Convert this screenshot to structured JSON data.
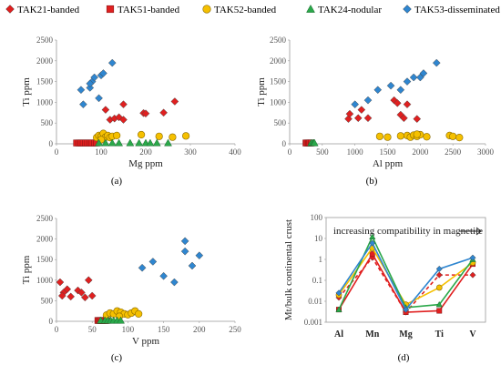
{
  "legend": [
    {
      "label": "TAK21-banded",
      "color": "#e02020",
      "marker": "diamond"
    },
    {
      "label": "TAK51-banded",
      "color": "#e02020",
      "marker": "square"
    },
    {
      "label": "TAK52-banded",
      "color": "#f5c000",
      "marker": "circle"
    },
    {
      "label": "TAK24-nodular",
      "color": "#2aa84a",
      "marker": "triangle"
    },
    {
      "label": "TAK53-disseminated",
      "color": "#2f86d0",
      "marker": "diamond"
    }
  ],
  "chart_data": [
    {
      "panel": "(a)",
      "type": "scatter",
      "xlabel": "Mg ppm",
      "ylabel": "Ti ppm",
      "xlim": [
        0,
        400
      ],
      "ylim": [
        0,
        2500
      ],
      "xticks": [
        0,
        100,
        200,
        300,
        400
      ],
      "yticks": [
        0,
        500,
        1000,
        1500,
        2000,
        2500
      ],
      "series": [
        {
          "name": "TAK21-banded",
          "points": [
            [
              110,
              820
            ],
            [
              120,
              580
            ],
            [
              130,
              610
            ],
            [
              140,
              640
            ],
            [
              150,
              950
            ],
            [
              195,
              740
            ],
            [
              200,
              730
            ],
            [
              240,
              750
            ],
            [
              265,
              1020
            ],
            [
              150,
              580
            ]
          ]
        },
        {
          "name": "TAK51-banded",
          "points": [
            [
              45,
              20
            ],
            [
              50,
              20
            ],
            [
              55,
              20
            ],
            [
              60,
              20
            ],
            [
              65,
              20
            ],
            [
              70,
              20
            ],
            [
              75,
              20
            ],
            [
              80,
              20
            ],
            [
              85,
              20
            ],
            [
              90,
              20
            ]
          ]
        },
        {
          "name": "TAK52-banded",
          "points": [
            [
              90,
              150
            ],
            [
              95,
              200
            ],
            [
              100,
              180
            ],
            [
              105,
              250
            ],
            [
              110,
              160
            ],
            [
              115,
              200
            ],
            [
              120,
              150
            ],
            [
              125,
              180
            ],
            [
              135,
              200
            ],
            [
              190,
              220
            ],
            [
              230,
              180
            ],
            [
              260,
              160
            ],
            [
              290,
              190
            ],
            [
              100,
              100
            ]
          ]
        },
        {
          "name": "TAK24-nodular",
          "points": [
            [
              95,
              20
            ],
            [
              110,
              20
            ],
            [
              125,
              20
            ],
            [
              140,
              20
            ],
            [
              165,
              20
            ],
            [
              185,
              20
            ],
            [
              200,
              20
            ],
            [
              210,
              20
            ],
            [
              225,
              20
            ],
            [
              250,
              20
            ]
          ]
        },
        {
          "name": "TAK53-disseminated",
          "points": [
            [
              55,
              1300
            ],
            [
              60,
              950
            ],
            [
              75,
              1350
            ],
            [
              80,
              1500
            ],
            [
              85,
              1600
            ],
            [
              95,
              1100
            ],
            [
              100,
              1650
            ],
            [
              105,
              1700
            ],
            [
              125,
              1950
            ],
            [
              75,
              1450
            ]
          ]
        }
      ]
    },
    {
      "panel": "(b)",
      "type": "scatter",
      "xlabel": "Al ppm",
      "ylabel": "Ti ppm",
      "xlim": [
        0,
        3000
      ],
      "ylim": [
        0,
        2500
      ],
      "xticks": [
        0,
        500,
        1000,
        1500,
        2000,
        2500,
        3000
      ],
      "yticks": [
        0,
        500,
        1000,
        1500,
        2000,
        2500
      ],
      "series": [
        {
          "name": "TAK21-banded",
          "points": [
            [
              900,
              600
            ],
            [
              920,
              720
            ],
            [
              1050,
              620
            ],
            [
              1100,
              820
            ],
            [
              1200,
              620
            ],
            [
              1600,
              1050
            ],
            [
              1700,
              700
            ],
            [
              1800,
              950
            ],
            [
              1950,
              600
            ],
            [
              1650,
              980
            ],
            [
              1750,
              620
            ]
          ]
        },
        {
          "name": "TAK51-banded",
          "points": [
            [
              250,
              20
            ],
            [
              270,
              20
            ],
            [
              290,
              20
            ],
            [
              310,
              20
            ],
            [
              330,
              20
            ]
          ]
        },
        {
          "name": "TAK52-banded",
          "points": [
            [
              1380,
              180
            ],
            [
              1500,
              160
            ],
            [
              1700,
              190
            ],
            [
              1800,
              200
            ],
            [
              1850,
              160
            ],
            [
              1900,
              210
            ],
            [
              1950,
              180
            ],
            [
              2000,
              220
            ],
            [
              2100,
              170
            ],
            [
              2450,
              200
            ],
            [
              2500,
              180
            ],
            [
              2600,
              150
            ],
            [
              1950,
              230
            ]
          ]
        },
        {
          "name": "TAK24-nodular",
          "points": [
            [
              330,
              20
            ],
            [
              350,
              20
            ],
            [
              370,
              20
            ],
            [
              380,
              20
            ]
          ]
        },
        {
          "name": "TAK53-disseminated",
          "points": [
            [
              1000,
              950
            ],
            [
              1200,
              1050
            ],
            [
              1350,
              1300
            ],
            [
              1550,
              1400
            ],
            [
              1700,
              1300
            ],
            [
              1800,
              1500
            ],
            [
              1900,
              1600
            ],
            [
              2000,
              1600
            ],
            [
              2050,
              1700
            ],
            [
              2250,
              1950
            ]
          ]
        }
      ]
    },
    {
      "panel": "(c)",
      "type": "scatter",
      "xlabel": "V ppm",
      "ylabel": "Ti ppm",
      "xlim": [
        0,
        250
      ],
      "ylim": [
        0,
        2500
      ],
      "xticks": [
        0,
        50,
        100,
        150,
        200,
        250
      ],
      "yticks": [
        0,
        500,
        1000,
        1500,
        2000,
        2500
      ],
      "series": [
        {
          "name": "TAK21-banded",
          "points": [
            [
              5,
              950
            ],
            [
              10,
              700
            ],
            [
              15,
              780
            ],
            [
              20,
              600
            ],
            [
              30,
              750
            ],
            [
              35,
              700
            ],
            [
              45,
              1000
            ],
            [
              50,
              620
            ],
            [
              8,
              620
            ],
            [
              40,
              580
            ]
          ]
        },
        {
          "name": "TAK51-banded",
          "points": [
            [
              58,
              20
            ],
            [
              60,
              20
            ],
            [
              62,
              20
            ],
            [
              65,
              20
            ],
            [
              68,
              20
            ],
            [
              70,
              20
            ]
          ]
        },
        {
          "name": "TAK52-banded",
          "points": [
            [
              70,
              150
            ],
            [
              75,
              200
            ],
            [
              80,
              180
            ],
            [
              85,
              250
            ],
            [
              90,
              220
            ],
            [
              95,
              180
            ],
            [
              100,
              160
            ],
            [
              105,
              200
            ],
            [
              110,
              250
            ],
            [
              115,
              180
            ],
            [
              88,
              120
            ]
          ]
        },
        {
          "name": "TAK24-nodular",
          "points": [
            [
              62,
              20
            ],
            [
              68,
              20
            ],
            [
              72,
              20
            ],
            [
              76,
              20
            ],
            [
              80,
              20
            ],
            [
              85,
              20
            ],
            [
              90,
              20
            ]
          ]
        },
        {
          "name": "TAK53-disseminated",
          "points": [
            [
              120,
              1300
            ],
            [
              135,
              1450
            ],
            [
              150,
              1100
            ],
            [
              165,
              950
            ],
            [
              180,
              1700
            ],
            [
              180,
              1950
            ],
            [
              190,
              1350
            ],
            [
              200,
              1600
            ]
          ]
        }
      ]
    },
    {
      "panel": "(d)",
      "type": "line",
      "xlabel": "",
      "ylabel": "Mt/bulk continental crust",
      "yscale": "log",
      "ylim": [
        0.001,
        100
      ],
      "yticks": [
        0.001,
        0.01,
        0.1,
        1,
        10,
        100
      ],
      "ytick_labels": [
        "0.001",
        "0.01",
        "0.1",
        "1",
        "10",
        "100"
      ],
      "categories": [
        "Al",
        "Mn",
        "Mg",
        "Ti",
        "V"
      ],
      "annotation": "increasing compatibility in magnetite",
      "series": [
        {
          "name": "TAK21-banded",
          "values": [
            0.015,
            1.2,
            0.003,
            0.18,
            0.18
          ],
          "dashed": true
        },
        {
          "name": "TAK51-banded",
          "values": [
            0.004,
            1.8,
            0.003,
            0.0035,
            0.6
          ],
          "dashed": false
        },
        {
          "name": "TAK52-banded",
          "values": [
            0.02,
            3.5,
            0.007,
            0.045,
            0.7
          ],
          "dashed": false
        },
        {
          "name": "TAK24-nodular",
          "values": [
            0.004,
            12,
            0.005,
            0.007,
            1.0
          ],
          "dashed": false
        },
        {
          "name": "TAK53-disseminated",
          "values": [
            0.025,
            6,
            0.004,
            0.35,
            1.2
          ],
          "dashed": false
        }
      ]
    }
  ]
}
